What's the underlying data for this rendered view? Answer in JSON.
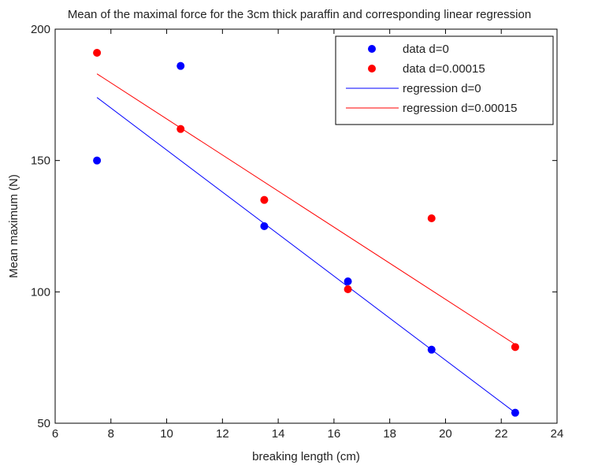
{
  "chart_data": {
    "type": "scatter",
    "title": "Mean of the maximal force for the 3cm thick paraffin and corresponding linear regression",
    "xlabel": "breaking length (cm)",
    "ylabel": "Mean maximum (N)",
    "xlim": [
      6,
      24
    ],
    "ylim": [
      50,
      200
    ],
    "xticks": [
      6,
      8,
      10,
      12,
      14,
      16,
      18,
      20,
      22,
      24
    ],
    "yticks": [
      50,
      100,
      150,
      200
    ],
    "grid": false,
    "legend_position": "top-right",
    "series": [
      {
        "name": "data d=0",
        "kind": "scatter",
        "color": "#0000ff",
        "x": [
          7.5,
          10.5,
          13.5,
          16.5,
          19.5,
          22.5
        ],
        "y": [
          150,
          186,
          125,
          104,
          78,
          54
        ]
      },
      {
        "name": "data d=0.00015",
        "kind": "scatter",
        "color": "#ff0000",
        "x": [
          7.5,
          10.5,
          13.5,
          16.5,
          19.5,
          22.5
        ],
        "y": [
          191,
          162,
          135,
          101,
          128,
          79
        ]
      },
      {
        "name": "regression d=0",
        "kind": "line",
        "color": "#0000ff",
        "x": [
          7.5,
          22.5
        ],
        "y": [
          174,
          54
        ]
      },
      {
        "name": "regression d=0.00015",
        "kind": "line",
        "color": "#ff0000",
        "x": [
          7.5,
          22.5
        ],
        "y": [
          183,
          80
        ]
      }
    ]
  }
}
